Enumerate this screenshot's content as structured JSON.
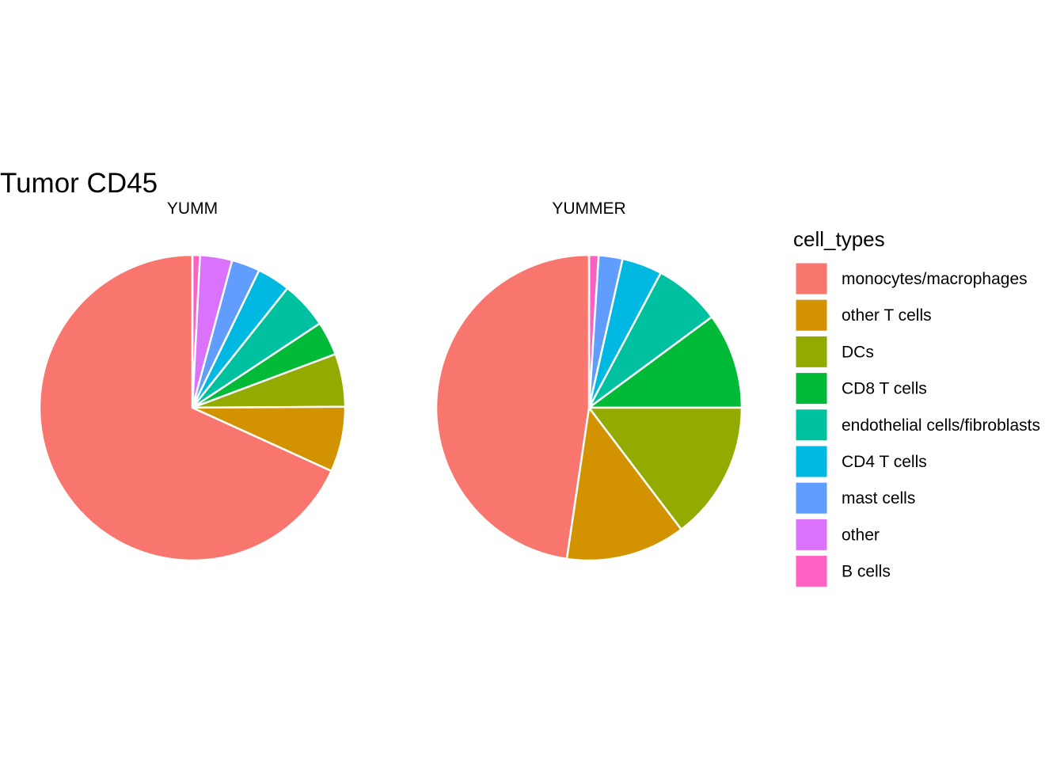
{
  "chart_data": {
    "type": "pie",
    "title": "Tumor CD45",
    "legend": {
      "title": "cell_types",
      "placement": "right"
    },
    "categories": [
      "monocytes/macrophages",
      "other T cells",
      "DCs",
      "CD8 T cells",
      "endothelial cells/fibroblasts",
      "CD4 T cells",
      "mast cells",
      "other",
      "B cells"
    ],
    "colors": [
      "#F8766D",
      "#D39200",
      "#93AA00",
      "#00BA38",
      "#00C19F",
      "#00B9E3",
      "#619CFF",
      "#DB72FB",
      "#FF61C3"
    ],
    "panels": [
      {
        "name": "YUMM",
        "values": [
          0.682,
          0.069,
          0.056,
          0.036,
          0.05,
          0.035,
          0.03,
          0.034,
          0.008
        ]
      },
      {
        "name": "YUMMER",
        "values": [
          0.471,
          0.125,
          0.145,
          0.1,
          0.07,
          0.042,
          0.025,
          0.0,
          0.01
        ]
      }
    ]
  }
}
